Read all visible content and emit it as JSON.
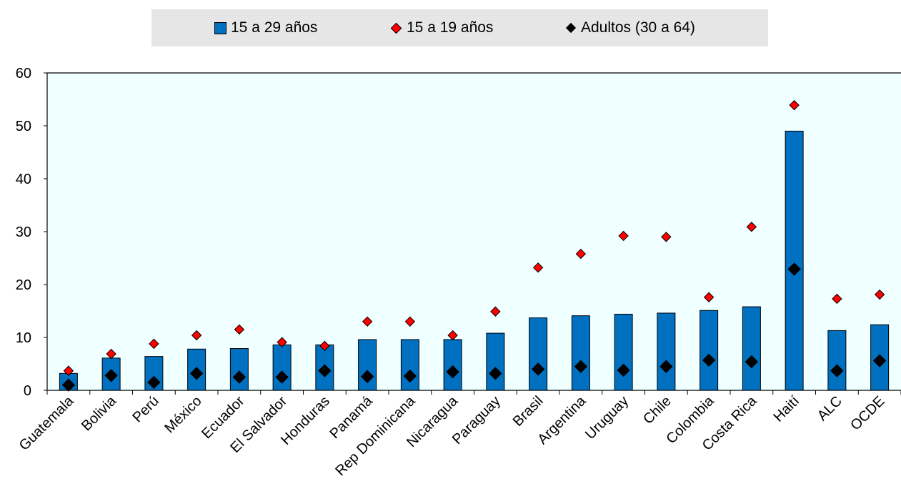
{
  "legend": {
    "bar_label": "15 a 29 años",
    "red_label": "15 a 19 años",
    "black_label": "Adultos (30 a 64)"
  },
  "colors": {
    "bar": "#0070c0",
    "red_marker": "#ff0000",
    "black_marker": "#000000",
    "plot_background": "#f0ffff",
    "legend_background": "#e6e6e6"
  },
  "chart_data": {
    "type": "bar",
    "categories": [
      "Guatemala",
      "Bolivia",
      "Perú",
      "México",
      "Ecuador",
      "El Salvador",
      "Honduras",
      "Panamá",
      "Rep Dominicana",
      "Nicaragua",
      "Paraguay",
      "Brasil",
      "Argentina",
      "Uruguay",
      "Chile",
      "Colombia",
      "Costa Rica",
      "Haití",
      "ALC",
      "OCDE"
    ],
    "series": [
      {
        "name": "15 a 29 años",
        "mark": "bar",
        "values": [
          3.2,
          6.1,
          6.4,
          7.8,
          7.9,
          8.6,
          8.6,
          9.6,
          9.6,
          9.6,
          10.8,
          13.7,
          14.1,
          14.4,
          14.6,
          15.1,
          15.8,
          49.0,
          11.3,
          12.4
        ]
      },
      {
        "name": "15 a 19 años",
        "mark": "diamond",
        "values": [
          3.7,
          6.9,
          8.8,
          10.4,
          11.5,
          9.1,
          8.4,
          13.0,
          13.0,
          10.4,
          14.9,
          23.2,
          25.8,
          29.2,
          29.0,
          17.6,
          30.9,
          53.9,
          17.3,
          18.1
        ]
      },
      {
        "name": "Adultos (30 a 64)",
        "mark": "diamond",
        "values": [
          1.0,
          2.8,
          1.5,
          3.2,
          2.5,
          2.5,
          3.7,
          2.6,
          2.7,
          3.5,
          3.2,
          4.0,
          4.5,
          3.8,
          4.5,
          5.7,
          5.4,
          22.9,
          3.7,
          5.6
        ]
      }
    ],
    "ylim": [
      0,
      60
    ],
    "yticks": [
      0,
      10,
      20,
      30,
      40,
      50,
      60
    ],
    "legend_position": "top",
    "grid": false
  }
}
